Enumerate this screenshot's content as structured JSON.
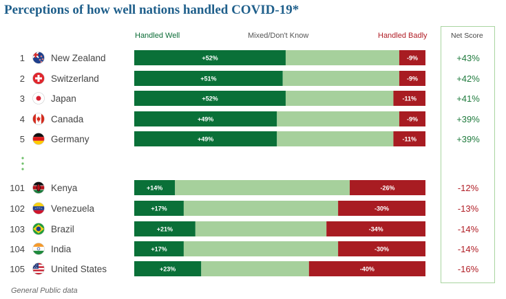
{
  "title": "Perceptions of how well nations handled COVID-19*",
  "headers": {
    "handled_well": "Handled Well",
    "mixed": "Mixed/Don't Know",
    "handled_badly": "Handled Badly",
    "net_score": "Net Score"
  },
  "footnote": "General Public data",
  "colors": {
    "handled_well": "#0a7038",
    "mixed": "#a6d09c",
    "handled_badly": "#a81c22",
    "net_positive": "#1e7a3c",
    "net_negative": "#b01c24",
    "title": "#1f5f8b"
  },
  "chart_data": {
    "type": "bar",
    "orientation": "horizontal",
    "stacked": true,
    "title": "Perceptions of how well nations handled COVID-19*",
    "series": [
      {
        "name": "Handled Well",
        "values": [
          52,
          51,
          52,
          49,
          49,
          14,
          17,
          21,
          17,
          23
        ]
      },
      {
        "name": "Handled Badly",
        "values": [
          9,
          9,
          11,
          9,
          11,
          26,
          30,
          34,
          30,
          40
        ]
      }
    ],
    "rows": [
      {
        "rank": "1",
        "country": "New Zealand",
        "flag": "new-zealand-flag",
        "well": 52,
        "badly": 9,
        "well_label": "+52%",
        "badly_label": "-9%",
        "net": "+43%"
      },
      {
        "rank": "2",
        "country": "Switzerland",
        "flag": "switzerland-flag",
        "well": 51,
        "badly": 9,
        "well_label": "+51%",
        "badly_label": "-9%",
        "net": "+42%"
      },
      {
        "rank": "3",
        "country": "Japan",
        "flag": "japan-flag",
        "well": 52,
        "badly": 11,
        "well_label": "+52%",
        "badly_label": "-11%",
        "net": "+41%"
      },
      {
        "rank": "4",
        "country": "Canada",
        "flag": "canada-flag",
        "well": 49,
        "badly": 9,
        "well_label": "+49%",
        "badly_label": "-9%",
        "net": "+39%"
      },
      {
        "rank": "5",
        "country": "Germany",
        "flag": "germany-flag",
        "well": 49,
        "badly": 11,
        "well_label": "+49%",
        "badly_label": "-11%",
        "net": "+39%"
      },
      {
        "rank": "101",
        "country": "Kenya",
        "flag": "kenya-flag",
        "well": 14,
        "badly": 26,
        "well_label": "+14%",
        "badly_label": "-26%",
        "net": "-12%"
      },
      {
        "rank": "102",
        "country": "Venezuela",
        "flag": "venezuela-flag",
        "well": 17,
        "badly": 30,
        "well_label": "+17%",
        "badly_label": "-30%",
        "net": "-13%"
      },
      {
        "rank": "103",
        "country": "Brazil",
        "flag": "brazil-flag",
        "well": 21,
        "badly": 34,
        "well_label": "+21%",
        "badly_label": "-34%",
        "net": "-14%"
      },
      {
        "rank": "104",
        "country": "India",
        "flag": "india-flag",
        "well": 17,
        "badly": 30,
        "well_label": "+17%",
        "badly_label": "-30%",
        "net": "-14%"
      },
      {
        "rank": "105",
        "country": "United States",
        "flag": "united-states-flag",
        "well": 23,
        "badly": 40,
        "well_label": "+23%",
        "badly_label": "-40%",
        "net": "-16%"
      }
    ],
    "xlim": [
      0,
      100
    ]
  }
}
